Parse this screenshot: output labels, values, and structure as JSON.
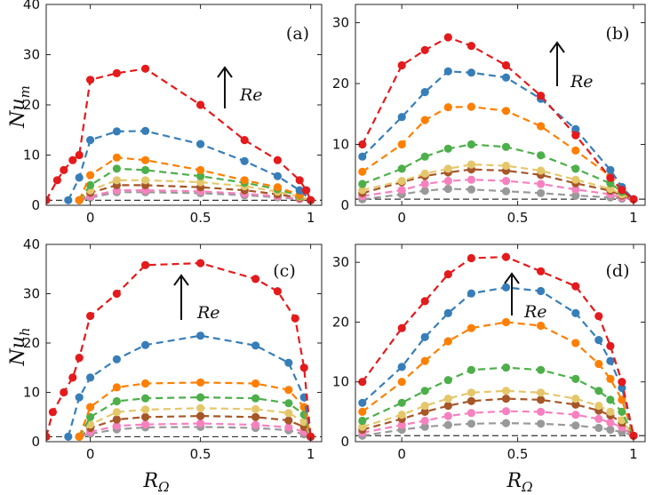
{
  "figure": {
    "xlabel_main": "R",
    "xlabel_sub": "Ω",
    "ylabel_top_main": "Nu",
    "ylabel_top_sub": "m",
    "ylabel_bottom_main": "Nu",
    "ylabel_bottom_sub": "h"
  },
  "colors": {
    "reference_line": "#333333",
    "series": [
      "#999999",
      "#f781bf",
      "#a65628",
      "#e5c76b",
      "#4daf4a",
      "#ff7f00",
      "#377eb8",
      "#e41a1c"
    ]
  },
  "chart_data": [
    {
      "type": "line",
      "panel": "(a)",
      "annotation": "Re",
      "xlim": [
        -0.2,
        1.05
      ],
      "ylim": [
        0,
        40
      ],
      "xticks": [
        "0",
        "0.5",
        "1"
      ],
      "yticks": [
        "0",
        "10",
        "20",
        "30",
        "40"
      ],
      "reference_y": 1,
      "series": [
        {
          "x": [
            -0.05,
            0,
            0.12,
            0.25,
            0.5,
            0.7,
            0.85,
            0.95,
            1.0
          ],
          "y": [
            1.0,
            1.5,
            2.6,
            2.6,
            2.4,
            2.0,
            1.6,
            1.2,
            1.0
          ]
        },
        {
          "x": [
            -0.05,
            0,
            0.12,
            0.25,
            0.5,
            0.7,
            0.85,
            0.95,
            1.0
          ],
          "y": [
            1.0,
            1.8,
            3.0,
            3.0,
            2.8,
            2.3,
            1.8,
            1.3,
            1.0
          ]
        },
        {
          "x": [
            -0.05,
            0,
            0.12,
            0.25,
            0.5,
            0.7,
            0.85,
            0.95,
            1.0
          ],
          "y": [
            1.0,
            2.5,
            4.0,
            4.0,
            3.6,
            3.0,
            2.2,
            1.5,
            1.0
          ]
        },
        {
          "x": [
            -0.05,
            0,
            0.12,
            0.25,
            0.5,
            0.7,
            0.85,
            0.95,
            1.0
          ],
          "y": [
            1.0,
            3.0,
            5.0,
            5.0,
            4.6,
            3.8,
            2.7,
            1.7,
            1.0
          ]
        },
        {
          "x": [
            -0.05,
            0,
            0.12,
            0.25,
            0.5,
            0.7,
            0.85,
            0.95,
            1.0
          ],
          "y": [
            1.0,
            4.0,
            7.3,
            7.0,
            5.8,
            4.5,
            3.2,
            1.9,
            1.0
          ]
        },
        {
          "x": [
            -0.05,
            0,
            0.12,
            0.25,
            0.5,
            0.7,
            0.85,
            0.95,
            1.0
          ],
          "y": [
            1.0,
            6.0,
            9.5,
            9.0,
            7.0,
            5.0,
            3.6,
            2.1,
            1.0
          ]
        },
        {
          "x": [
            -0.1,
            -0.05,
            0,
            0.12,
            0.25,
            0.5,
            0.7,
            0.85,
            0.95,
            1.0
          ],
          "y": [
            1.0,
            5.5,
            13.0,
            14.7,
            14.8,
            12.2,
            8.8,
            5.8,
            3.0,
            1.0
          ]
        },
        {
          "x": [
            -0.2,
            -0.15,
            -0.12,
            -0.08,
            -0.05,
            0,
            0.12,
            0.25,
            0.5,
            0.7,
            0.85,
            0.95,
            0.98,
            1.0
          ],
          "y": [
            1.0,
            5.0,
            7.0,
            9.0,
            10.0,
            25.0,
            26.3,
            27.2,
            20.0,
            13.0,
            9.0,
            5.0,
            3.0,
            1.0
          ]
        }
      ]
    },
    {
      "type": "line",
      "panel": "(b)",
      "annotation": "Re",
      "xlim": [
        -0.2,
        1.05
      ],
      "ylim": [
        0,
        33
      ],
      "xticks": [
        "0",
        "0.5",
        "1"
      ],
      "yticks": [
        "0",
        "10",
        "20",
        "30"
      ],
      "reference_y": 1,
      "series": [
        {
          "x": [
            -0.17,
            0,
            0.1,
            0.2,
            0.3,
            0.45,
            0.6,
            0.75,
            0.9,
            0.95,
            1.0
          ],
          "y": [
            1.0,
            1.8,
            2.4,
            2.7,
            2.6,
            2.3,
            2.0,
            1.6,
            1.3,
            1.1,
            1.0
          ]
        },
        {
          "x": [
            -0.17,
            0,
            0.1,
            0.2,
            0.3,
            0.45,
            0.6,
            0.75,
            0.9,
            0.95,
            1.0
          ],
          "y": [
            1.5,
            2.5,
            3.5,
            4.0,
            4.2,
            4.0,
            3.5,
            2.6,
            1.8,
            1.3,
            1.0
          ]
        },
        {
          "x": [
            -0.17,
            0,
            0.1,
            0.2,
            0.3,
            0.45,
            0.6,
            0.75,
            0.9,
            0.95,
            1.0
          ],
          "y": [
            2.0,
            3.8,
            4.8,
            5.4,
            5.9,
            5.7,
            5.0,
            3.6,
            2.4,
            1.6,
            1.0
          ]
        },
        {
          "x": [
            -0.17,
            0,
            0.1,
            0.2,
            0.3,
            0.45,
            0.6,
            0.75,
            0.9,
            0.95,
            1.0
          ],
          "y": [
            2.5,
            4.0,
            5.2,
            6.0,
            6.7,
            6.5,
            5.7,
            4.2,
            2.7,
            1.8,
            1.0
          ]
        },
        {
          "x": [
            -0.17,
            0,
            0.1,
            0.2,
            0.3,
            0.45,
            0.6,
            0.75,
            0.9,
            0.95,
            1.0
          ],
          "y": [
            3.5,
            6.0,
            8.0,
            9.3,
            10.0,
            9.6,
            8.2,
            6.0,
            3.6,
            2.2,
            1.0
          ]
        },
        {
          "x": [
            -0.17,
            0,
            0.1,
            0.2,
            0.3,
            0.45,
            0.6,
            0.75,
            0.9,
            0.95,
            1.0
          ],
          "y": [
            5.5,
            10.0,
            14.0,
            16.1,
            16.2,
            15.5,
            13.0,
            9.0,
            4.8,
            2.7,
            1.0
          ]
        },
        {
          "x": [
            -0.17,
            0,
            0.1,
            0.2,
            0.3,
            0.45,
            0.6,
            0.75,
            0.9,
            0.95,
            1.0
          ],
          "y": [
            8.0,
            14.5,
            18.6,
            22.0,
            21.8,
            21.0,
            17.5,
            12.5,
            5.8,
            3.0,
            1.0
          ]
        },
        {
          "x": [
            -0.17,
            0,
            0.1,
            0.2,
            0.3,
            0.45,
            0.6,
            0.75,
            0.9,
            0.95,
            1.0
          ],
          "y": [
            10.0,
            23.0,
            25.5,
            27.6,
            26.2,
            23.0,
            18.0,
            11.5,
            4.5,
            2.5,
            1.0
          ]
        }
      ]
    },
    {
      "type": "line",
      "panel": "(c)",
      "annotation": "Re",
      "xlim": [
        -0.2,
        1.05
      ],
      "ylim": [
        0,
        40
      ],
      "xticks": [
        "0",
        "0.5",
        "1"
      ],
      "yticks": [
        "0",
        "10",
        "20",
        "30",
        "40"
      ],
      "reference_y": 1,
      "series": [
        {
          "x": [
            -0.05,
            0,
            0.12,
            0.25,
            0.5,
            0.75,
            0.9,
            0.97,
            1.0
          ],
          "y": [
            1.0,
            1.6,
            2.5,
            2.9,
            3.0,
            2.8,
            2.3,
            1.5,
            1.0
          ]
        },
        {
          "x": [
            -0.05,
            0,
            0.12,
            0.25,
            0.5,
            0.75,
            0.9,
            0.97,
            1.0
          ],
          "y": [
            1.0,
            2.0,
            3.2,
            3.5,
            3.7,
            3.4,
            2.9,
            2.0,
            1.0
          ]
        },
        {
          "x": [
            -0.05,
            0,
            0.12,
            0.25,
            0.5,
            0.75,
            0.9,
            0.97,
            1.0
          ],
          "y": [
            1.0,
            2.8,
            4.5,
            5.0,
            5.2,
            5.0,
            4.3,
            3.0,
            1.0
          ]
        },
        {
          "x": [
            -0.05,
            0,
            0.12,
            0.25,
            0.5,
            0.75,
            0.9,
            0.97,
            1.0
          ],
          "y": [
            1.0,
            3.5,
            6.0,
            6.5,
            6.8,
            6.6,
            5.8,
            4.0,
            1.0
          ]
        },
        {
          "x": [
            -0.05,
            0,
            0.12,
            0.25,
            0.5,
            0.75,
            0.9,
            0.97,
            1.0
          ],
          "y": [
            1.0,
            5.0,
            8.2,
            8.8,
            9.0,
            8.8,
            7.8,
            5.5,
            1.0
          ]
        },
        {
          "x": [
            -0.05,
            0,
            0.12,
            0.25,
            0.5,
            0.75,
            0.9,
            0.97,
            1.0
          ],
          "y": [
            1.0,
            7.0,
            11.0,
            11.8,
            12.0,
            11.8,
            10.5,
            7.0,
            1.0
          ]
        },
        {
          "x": [
            -0.1,
            -0.05,
            0,
            0.12,
            0.25,
            0.5,
            0.75,
            0.9,
            0.97,
            1.0
          ],
          "y": [
            1.0,
            9.0,
            13.0,
            16.7,
            19.6,
            21.5,
            19.5,
            16.0,
            9.0,
            1.0
          ]
        },
        {
          "x": [
            -0.2,
            -0.17,
            -0.12,
            -0.08,
            -0.05,
            0,
            0.12,
            0.25,
            0.5,
            0.75,
            0.85,
            0.93,
            0.97,
            1.0
          ],
          "y": [
            1.0,
            6.0,
            10.0,
            13.0,
            17.0,
            25.5,
            30.0,
            35.8,
            36.2,
            33.0,
            30.5,
            25.0,
            15.0,
            1.0
          ]
        }
      ]
    },
    {
      "type": "line",
      "panel": "(d)",
      "annotation": "Re",
      "xlim": [
        -0.2,
        1.05
      ],
      "ylim": [
        0,
        33
      ],
      "xticks": [
        "0",
        "0.5",
        "1"
      ],
      "yticks": [
        "0",
        "10",
        "20",
        "30"
      ],
      "reference_y": 1,
      "series": [
        {
          "x": [
            -0.17,
            0,
            0.1,
            0.2,
            0.3,
            0.45,
            0.6,
            0.75,
            0.85,
            0.9,
            0.95,
            1.0
          ],
          "y": [
            1.0,
            2.0,
            2.5,
            2.8,
            3.0,
            3.1,
            3.0,
            2.7,
            2.3,
            2.0,
            1.6,
            1.0
          ]
        },
        {
          "x": [
            -0.17,
            0,
            0.1,
            0.2,
            0.3,
            0.45,
            0.6,
            0.75,
            0.85,
            0.9,
            0.95,
            1.0
          ],
          "y": [
            1.5,
            2.8,
            3.5,
            4.3,
            4.8,
            5.1,
            5.0,
            4.5,
            3.8,
            3.2,
            2.4,
            1.0
          ]
        },
        {
          "x": [
            -0.17,
            0,
            0.1,
            0.2,
            0.3,
            0.45,
            0.6,
            0.75,
            0.85,
            0.9,
            0.95,
            1.0
          ],
          "y": [
            2.0,
            3.8,
            5.0,
            6.0,
            6.8,
            7.2,
            7.0,
            6.2,
            5.2,
            4.4,
            3.2,
            1.0
          ]
        },
        {
          "x": [
            -0.17,
            0,
            0.1,
            0.2,
            0.3,
            0.45,
            0.6,
            0.75,
            0.85,
            0.9,
            0.95,
            1.0
          ],
          "y": [
            2.5,
            4.5,
            6.0,
            7.2,
            8.2,
            8.5,
            8.2,
            7.2,
            6.0,
            5.0,
            3.6,
            1.0
          ]
        },
        {
          "x": [
            -0.17,
            0,
            0.1,
            0.2,
            0.3,
            0.45,
            0.6,
            0.75,
            0.85,
            0.9,
            0.95,
            1.0
          ],
          "y": [
            3.5,
            6.5,
            8.5,
            10.3,
            12.0,
            12.4,
            12.0,
            10.5,
            8.5,
            7.0,
            5.0,
            1.0
          ]
        },
        {
          "x": [
            -0.17,
            0,
            0.1,
            0.2,
            0.3,
            0.45,
            0.6,
            0.75,
            0.85,
            0.9,
            0.95,
            1.0
          ],
          "y": [
            5.0,
            10.0,
            13.5,
            16.8,
            19.0,
            20.0,
            19.4,
            16.5,
            13.0,
            10.5,
            7.0,
            1.0
          ]
        },
        {
          "x": [
            -0.17,
            0,
            0.1,
            0.2,
            0.3,
            0.45,
            0.6,
            0.75,
            0.85,
            0.9,
            0.95,
            1.0
          ],
          "y": [
            6.5,
            12.5,
            17.5,
            21.5,
            24.8,
            25.8,
            25.2,
            21.5,
            17.0,
            13.5,
            9.0,
            1.0
          ]
        },
        {
          "x": [
            -0.17,
            0,
            0.1,
            0.2,
            0.3,
            0.45,
            0.6,
            0.75,
            0.85,
            0.9,
            0.95,
            1.0
          ],
          "y": [
            10.0,
            19.0,
            23.5,
            28.0,
            30.7,
            30.9,
            28.5,
            26.0,
            21.0,
            16.0,
            10.0,
            1.0
          ]
        }
      ]
    }
  ]
}
